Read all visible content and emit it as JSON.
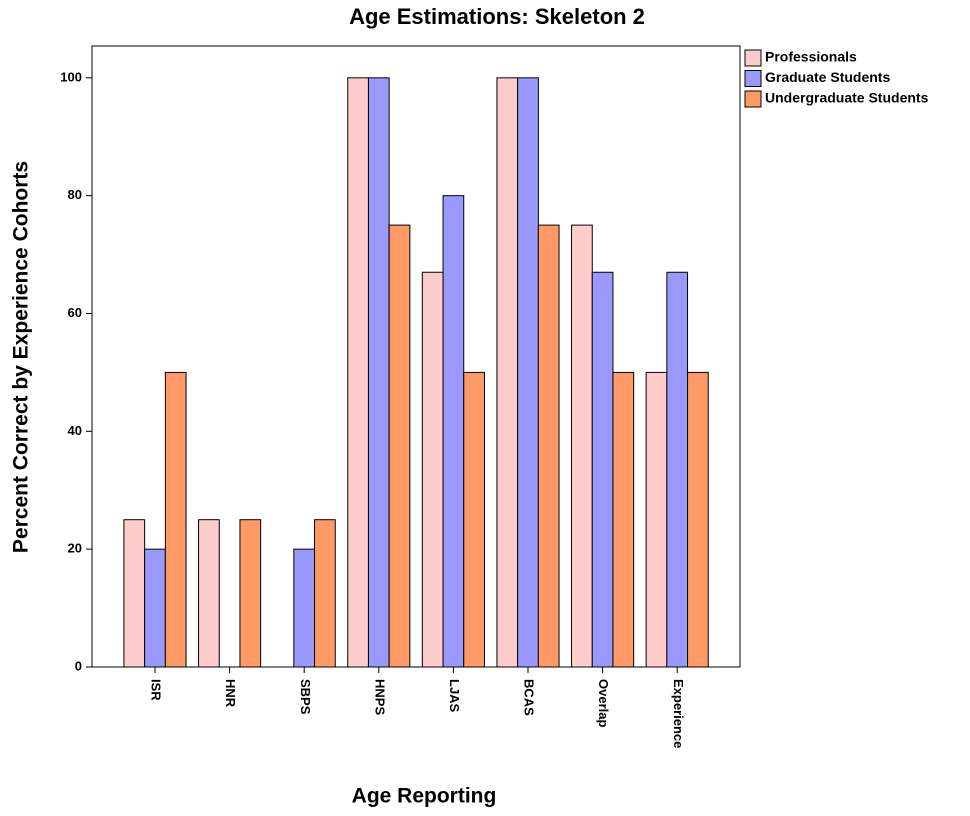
{
  "chart_data": {
    "type": "bar",
    "title": "Age Estimations: Skeleton 2",
    "x_label": "Age Reporting",
    "y_label": "Percent Correct by Experience Cohorts",
    "categories": [
      "ISR",
      "HNR",
      "SBPS",
      "HNPS",
      "LJAS",
      "BCAS",
      "Overlap",
      "Experience"
    ],
    "series": [
      {
        "name": "Professionals",
        "color": "#ffcccc",
        "values": [
          25,
          25,
          0,
          100,
          67,
          100,
          75,
          50
        ]
      },
      {
        "name": "Graduate Students",
        "color": "#9999ff",
        "values": [
          20,
          0,
          20,
          100,
          80,
          100,
          67,
          67
        ]
      },
      {
        "name": "Undergraduate Students",
        "color": "#ff9966",
        "values": [
          50,
          25,
          25,
          75,
          50,
          75,
          50,
          50
        ]
      }
    ],
    "ylim": [
      0,
      105.4
    ],
    "yticks": [
      0,
      20,
      40,
      60,
      80,
      100
    ],
    "legend": "right"
  }
}
